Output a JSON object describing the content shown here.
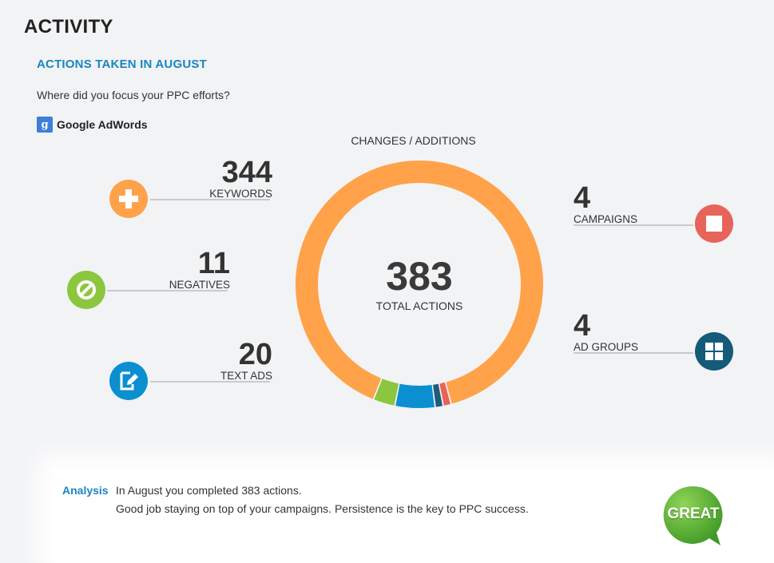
{
  "page": {
    "title": "ACTIVITY"
  },
  "section": {
    "title": "ACTIONS TAKEN IN AUGUST",
    "question": "Where did you focus your PPC efforts?",
    "provider": {
      "icon": "google-g-icon",
      "glyph": "g",
      "name": "Google AdWords",
      "color": "#3d7fd6"
    }
  },
  "chart_data": {
    "type": "pie",
    "style": "donut",
    "title": "CHANGES / ADDITIONS",
    "center_value": "383",
    "center_label": "TOTAL ACTIONS",
    "total": 383,
    "categories": [
      "KEYWORDS",
      "NEGATIVES",
      "TEXT ADS",
      "AD GROUPS",
      "CAMPAIGNS"
    ],
    "values": [
      344,
      11,
      20,
      4,
      4
    ],
    "colors": [
      "#ffa24a",
      "#8cc63e",
      "#0b8fd1",
      "#1f5c78",
      "#e8645a"
    ]
  },
  "stats": {
    "keywords": {
      "value": "344",
      "label": "KEYWORDS",
      "icon": "plus-icon",
      "color": "#ffa24a"
    },
    "negatives": {
      "value": "11",
      "label": "NEGATIVES",
      "icon": "ban-icon",
      "color": "#8cc63e"
    },
    "text_ads": {
      "value": "20",
      "label": "TEXT ADS",
      "icon": "edit-icon",
      "color": "#0b8fd1"
    },
    "campaigns": {
      "value": "4",
      "label": "CAMPAIGNS",
      "icon": "square-icon",
      "color": "#e8645a"
    },
    "ad_groups": {
      "value": "4",
      "label": "AD GROUPS",
      "icon": "grid-icon",
      "color": "#135b78"
    }
  },
  "analysis": {
    "label": "Analysis",
    "line1": "In August you completed 383 actions.",
    "line2": "Good job staying on top of your campaigns. Persistence is the key to PPC success.",
    "badge": {
      "text": "GREAT",
      "icon": "speech-bubble-icon",
      "color": "#5eb33a"
    }
  }
}
